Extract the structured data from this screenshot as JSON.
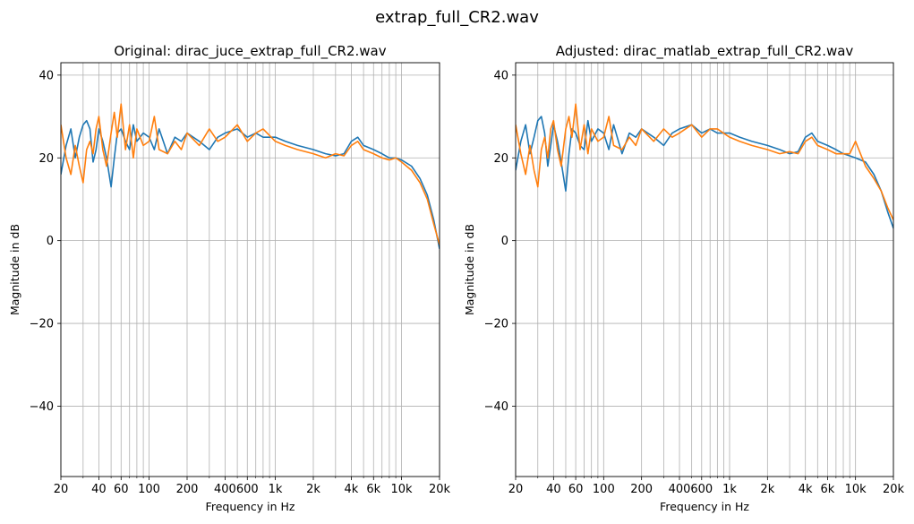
{
  "figure": {
    "suptitle": "extrap_full_CR2.wav"
  },
  "chart_data": [
    {
      "type": "line",
      "title": "Original: dirac_juce_extrap_full_CR2.wav",
      "xlabel": "Frequency in Hz",
      "ylabel": "Magnitude in dB",
      "xscale": "log",
      "xlim": [
        20,
        20000
      ],
      "ylim": [
        -57,
        43
      ],
      "grid": true,
      "x_ticks": [
        20,
        40,
        60,
        100,
        200,
        400,
        600,
        1000,
        2000,
        4000,
        6000,
        10000,
        20000
      ],
      "x_tick_labels": [
        "20",
        "40",
        "60",
        "100",
        "200",
        "400",
        "600",
        "1k",
        "2k",
        "4k",
        "6k",
        "10k",
        "20k"
      ],
      "y_ticks": [
        -40,
        -20,
        0,
        20,
        40
      ],
      "y_tick_labels": [
        "−40",
        "−20",
        "0",
        "20",
        "40"
      ],
      "series": [
        {
          "color": "#1f77b4",
          "x": [
            20,
            22,
            24,
            26,
            28,
            30,
            32,
            34,
            36,
            38,
            40,
            43,
            46,
            50,
            53,
            56,
            60,
            65,
            70,
            75,
            80,
            90,
            100,
            110,
            120,
            140,
            160,
            180,
            200,
            250,
            300,
            350,
            400,
            500,
            600,
            700,
            800,
            1000,
            1200,
            1500,
            2000,
            2500,
            3000,
            3500,
            4000,
            4500,
            5000,
            6000,
            7000,
            8000,
            9000,
            10000,
            12000,
            14000,
            16000,
            18000,
            20000
          ],
          "y": [
            16,
            23,
            27,
            20,
            25,
            28,
            29,
            27,
            19,
            22,
            27,
            24,
            20,
            13,
            20,
            26,
            27,
            24,
            22,
            28,
            24,
            26,
            25,
            22,
            27,
            21,
            25,
            24,
            26,
            24,
            22,
            25,
            26,
            27,
            25,
            26,
            25,
            25,
            24,
            23,
            22,
            21,
            20.5,
            21,
            24,
            25,
            23,
            22,
            21,
            20,
            20,
            19.5,
            18,
            15,
            11,
            5,
            -2
          ]
        },
        {
          "color": "#ff7f0e",
          "x": [
            20,
            22,
            24,
            26,
            28,
            30,
            32,
            34,
            36,
            38,
            40,
            43,
            46,
            50,
            53,
            56,
            60,
            65,
            70,
            75,
            80,
            90,
            100,
            110,
            120,
            140,
            160,
            180,
            200,
            250,
            300,
            350,
            400,
            500,
            600,
            700,
            800,
            1000,
            1200,
            1500,
            2000,
            2500,
            3000,
            3500,
            4000,
            4500,
            5000,
            6000,
            7000,
            8000,
            9000,
            10000,
            12000,
            14000,
            16000,
            18000,
            20000
          ],
          "y": [
            28,
            20,
            16,
            23,
            18,
            14,
            22,
            24,
            21,
            27,
            30,
            22,
            18,
            26,
            31,
            25,
            33,
            22,
            28,
            20,
            27,
            23,
            24,
            30,
            22,
            21,
            24,
            22,
            26,
            23,
            27,
            24,
            25,
            28,
            24,
            26,
            27,
            24,
            23,
            22,
            21,
            20,
            21,
            20.5,
            23,
            24,
            22,
            21,
            20,
            19.5,
            20,
            19,
            17,
            14,
            10,
            4,
            -1
          ]
        }
      ]
    },
    {
      "type": "line",
      "title": "Adjusted: dirac_matlab_extrap_full_CR2.wav",
      "xlabel": "Frequency in Hz",
      "ylabel": "Magnitude in dB",
      "xscale": "log",
      "xlim": [
        20,
        20000
      ],
      "ylim": [
        -57,
        43
      ],
      "grid": true,
      "x_ticks": [
        20,
        40,
        60,
        100,
        200,
        400,
        600,
        1000,
        2000,
        4000,
        6000,
        10000,
        20000
      ],
      "x_tick_labels": [
        "20",
        "40",
        "60",
        "100",
        "200",
        "400",
        "600",
        "1k",
        "2k",
        "4k",
        "6k",
        "10k",
        "20k"
      ],
      "y_ticks": [
        -40,
        -20,
        0,
        20,
        40
      ],
      "y_tick_labels": [
        "−40",
        "−20",
        "0",
        "20",
        "40"
      ],
      "series": [
        {
          "color": "#1f77b4",
          "x": [
            20,
            22,
            24,
            26,
            28,
            30,
            32,
            34,
            36,
            38,
            40,
            43,
            46,
            50,
            53,
            56,
            60,
            65,
            70,
            75,
            80,
            90,
            100,
            110,
            120,
            140,
            160,
            180,
            200,
            250,
            300,
            350,
            400,
            500,
            600,
            700,
            800,
            1000,
            1200,
            1500,
            2000,
            2500,
            3000,
            3500,
            4000,
            4500,
            5000,
            6000,
            7000,
            8000,
            9000,
            10000,
            12000,
            14000,
            16000,
            18000,
            20000
          ],
          "y": [
            17,
            24,
            28,
            21,
            25,
            29,
            30,
            26,
            18,
            23,
            28,
            24,
            19,
            12,
            21,
            27,
            26,
            23,
            22,
            29,
            24,
            27,
            26,
            22,
            28,
            21,
            26,
            25,
            27,
            25,
            23,
            26,
            27,
            28,
            26,
            27,
            26,
            26,
            25,
            24,
            23,
            22,
            21,
            21.5,
            25,
            26,
            24,
            23,
            22,
            21,
            20.5,
            20,
            19,
            16,
            12,
            7,
            3
          ]
        },
        {
          "color": "#ff7f0e",
          "x": [
            20,
            22,
            24,
            26,
            28,
            30,
            32,
            34,
            36,
            38,
            40,
            43,
            46,
            50,
            53,
            56,
            60,
            65,
            70,
            75,
            80,
            90,
            100,
            110,
            120,
            140,
            160,
            180,
            200,
            250,
            300,
            350,
            400,
            500,
            600,
            700,
            800,
            1000,
            1200,
            1500,
            2000,
            2500,
            3000,
            3500,
            4000,
            4500,
            5000,
            6000,
            7000,
            8000,
            9000,
            10000,
            12000,
            14000,
            16000,
            18000,
            20000
          ],
          "y": [
            28,
            21,
            16,
            23,
            17,
            13,
            22,
            25,
            20,
            27,
            29,
            22,
            18,
            27,
            30,
            25,
            33,
            22,
            28,
            21,
            27,
            24,
            25,
            30,
            23,
            22,
            25,
            23,
            27,
            24,
            27,
            25,
            26,
            28,
            25,
            27,
            27,
            25,
            24,
            23,
            22,
            21,
            21.5,
            21,
            24,
            25,
            23,
            22,
            21,
            21,
            21,
            24,
            18,
            15,
            12,
            8,
            5
          ]
        }
      ]
    }
  ]
}
